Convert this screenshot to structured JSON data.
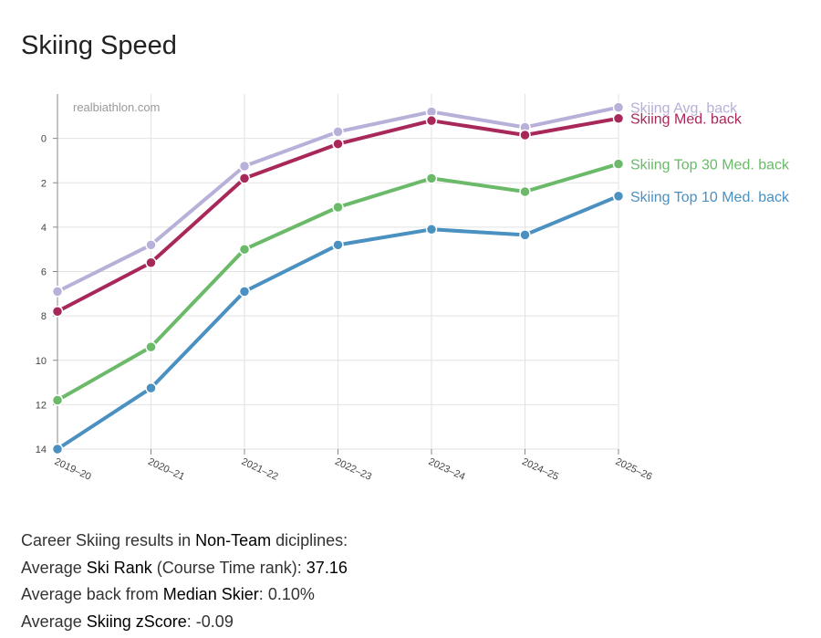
{
  "title": "Skiing Speed",
  "watermark": "realbiathlon.com",
  "colors": {
    "avg": "#b8b0d8",
    "med": "#a8285a",
    "top30": "#6aba6a",
    "top10": "#4a90c0",
    "grid": "#e2e2e2",
    "axis": "#888888"
  },
  "chart_data": {
    "type": "line",
    "title": "Skiing Speed",
    "xlabel": "",
    "ylabel": "",
    "y_inverted": true,
    "ylim": [
      -2,
      14
    ],
    "y_ticks": [
      0,
      2,
      4,
      6,
      8,
      10,
      12,
      14
    ],
    "categories": [
      "2019–20",
      "2020–21",
      "2021–22",
      "2022–23",
      "2023–24",
      "2024–25",
      "2025–26"
    ],
    "series": [
      {
        "key": "avg",
        "name": "Skiing Avg. back",
        "values": [
          6.9,
          4.8,
          1.25,
          -0.3,
          -1.2,
          -0.5,
          -1.4
        ]
      },
      {
        "key": "med",
        "name": "Skiing Med. back",
        "values": [
          7.8,
          5.6,
          1.8,
          0.25,
          -0.8,
          -0.15,
          -0.9
        ]
      },
      {
        "key": "top30",
        "name": "Skiing Top 30 Med. back",
        "values": [
          11.8,
          9.4,
          5.0,
          3.1,
          1.8,
          2.4,
          1.15
        ]
      },
      {
        "key": "top10",
        "name": "Skiing Top 10 Med. back",
        "values": [
          14.0,
          11.25,
          6.9,
          4.8,
          4.1,
          4.35,
          2.6
        ]
      }
    ]
  },
  "summary": {
    "line1_prefix": "Career Skiing results in ",
    "line1_bold": "Non-Team",
    "line1_suffix": " diciplines:",
    "line2_prefix": "Average ",
    "line2_bold": "Ski Rank",
    "line2_mid": " (Course Time rank): ",
    "line2_value": "37.16",
    "line3_prefix": "Average back from ",
    "line3_bold": "Median Skier",
    "line3_mid": ": ",
    "line3_value": "0.10%",
    "line4_prefix": "Average ",
    "line4_bold": "Skiing zScore",
    "line4_mid": ": ",
    "line4_value": "-0.09"
  }
}
